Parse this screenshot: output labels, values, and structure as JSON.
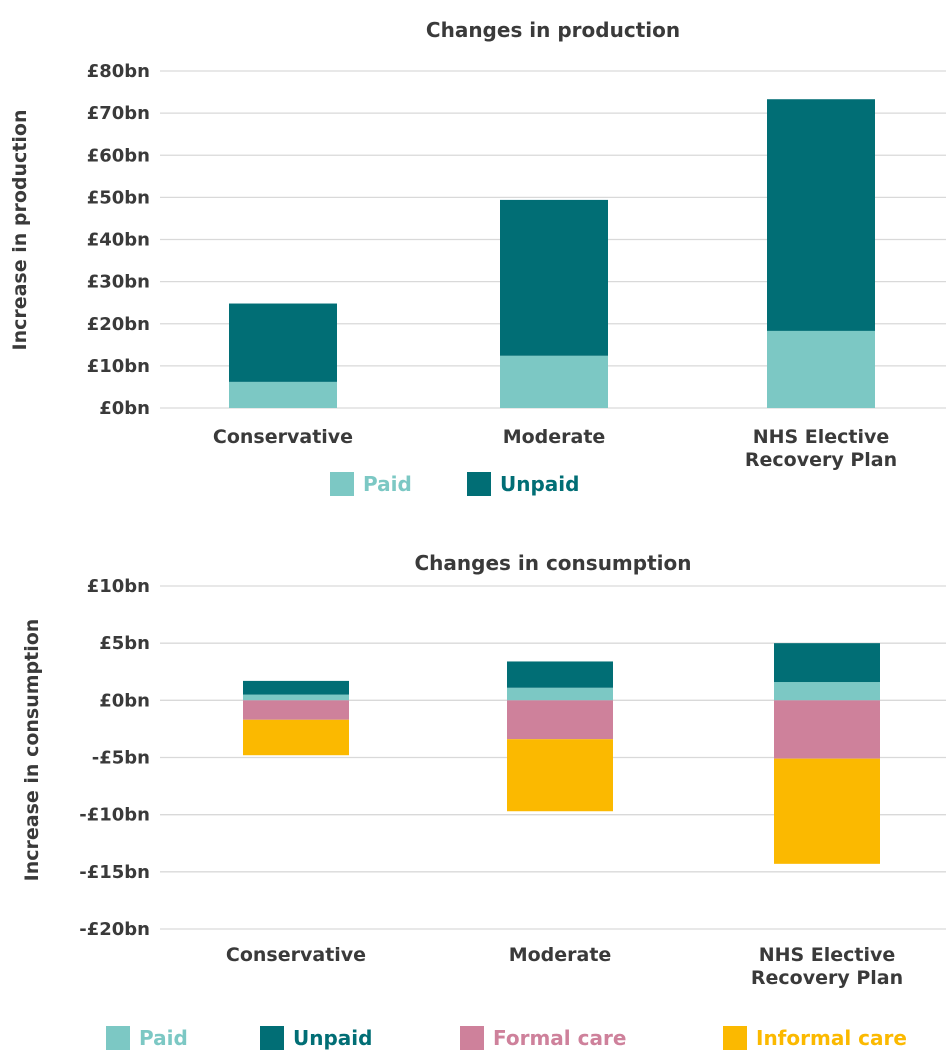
{
  "chart_data": [
    {
      "type": "bar",
      "stacked": true,
      "title": "Changes in production",
      "ylabel": "Increase in production",
      "xlabel": "",
      "categories": [
        [
          "Conservative"
        ],
        [
          "Moderate"
        ],
        [
          "NHS Elective",
          "Recovery Plan"
        ]
      ],
      "series": [
        {
          "name": "Paid",
          "color": "#7cc8c4",
          "values": [
            6.2,
            12.4,
            18.3
          ]
        },
        {
          "name": "Unpaid",
          "color": "#016e75",
          "values": [
            18.6,
            37.0,
            55.0
          ]
        }
      ],
      "ylim": [
        0,
        80
      ],
      "yticks": [
        0,
        10,
        20,
        30,
        40,
        50,
        60,
        70,
        80
      ],
      "ytick_labels": [
        "£0bn",
        "£10bn",
        "£20bn",
        "£30bn",
        "£40bn",
        "£50bn",
        "£60bn",
        "£70bn",
        "£80bn"
      ],
      "grid": true,
      "legend": "bottom"
    },
    {
      "type": "bar",
      "stacked": true,
      "title": "Changes in consumption",
      "ylabel": "Increase in consumption",
      "xlabel": "",
      "categories": [
        [
          "Conservative"
        ],
        [
          "Moderate"
        ],
        [
          "NHS Elective",
          "Recovery Plan"
        ]
      ],
      "series": [
        {
          "name": "Paid",
          "color": "#7cc8c4",
          "values": [
            0.5,
            1.1,
            1.6
          ]
        },
        {
          "name": "Unpaid",
          "color": "#016e75",
          "values": [
            1.2,
            2.3,
            3.4
          ]
        },
        {
          "name": "Formal care",
          "color": "#ce819b",
          "values": [
            -1.7,
            -3.4,
            -5.1
          ]
        },
        {
          "name": "Informal care",
          "color": "#fbb900",
          "values": [
            -3.1,
            -6.3,
            -9.2
          ]
        }
      ],
      "ylim": [
        -20,
        10
      ],
      "yticks": [
        -20,
        -15,
        -10,
        -5,
        0,
        5,
        10
      ],
      "ytick_labels": [
        "-£20bn",
        "-£15bn",
        "-£10bn",
        "-£5bn",
        "£0bn",
        "£5bn",
        "£10bn"
      ],
      "grid": true,
      "legend": "bottom"
    }
  ]
}
